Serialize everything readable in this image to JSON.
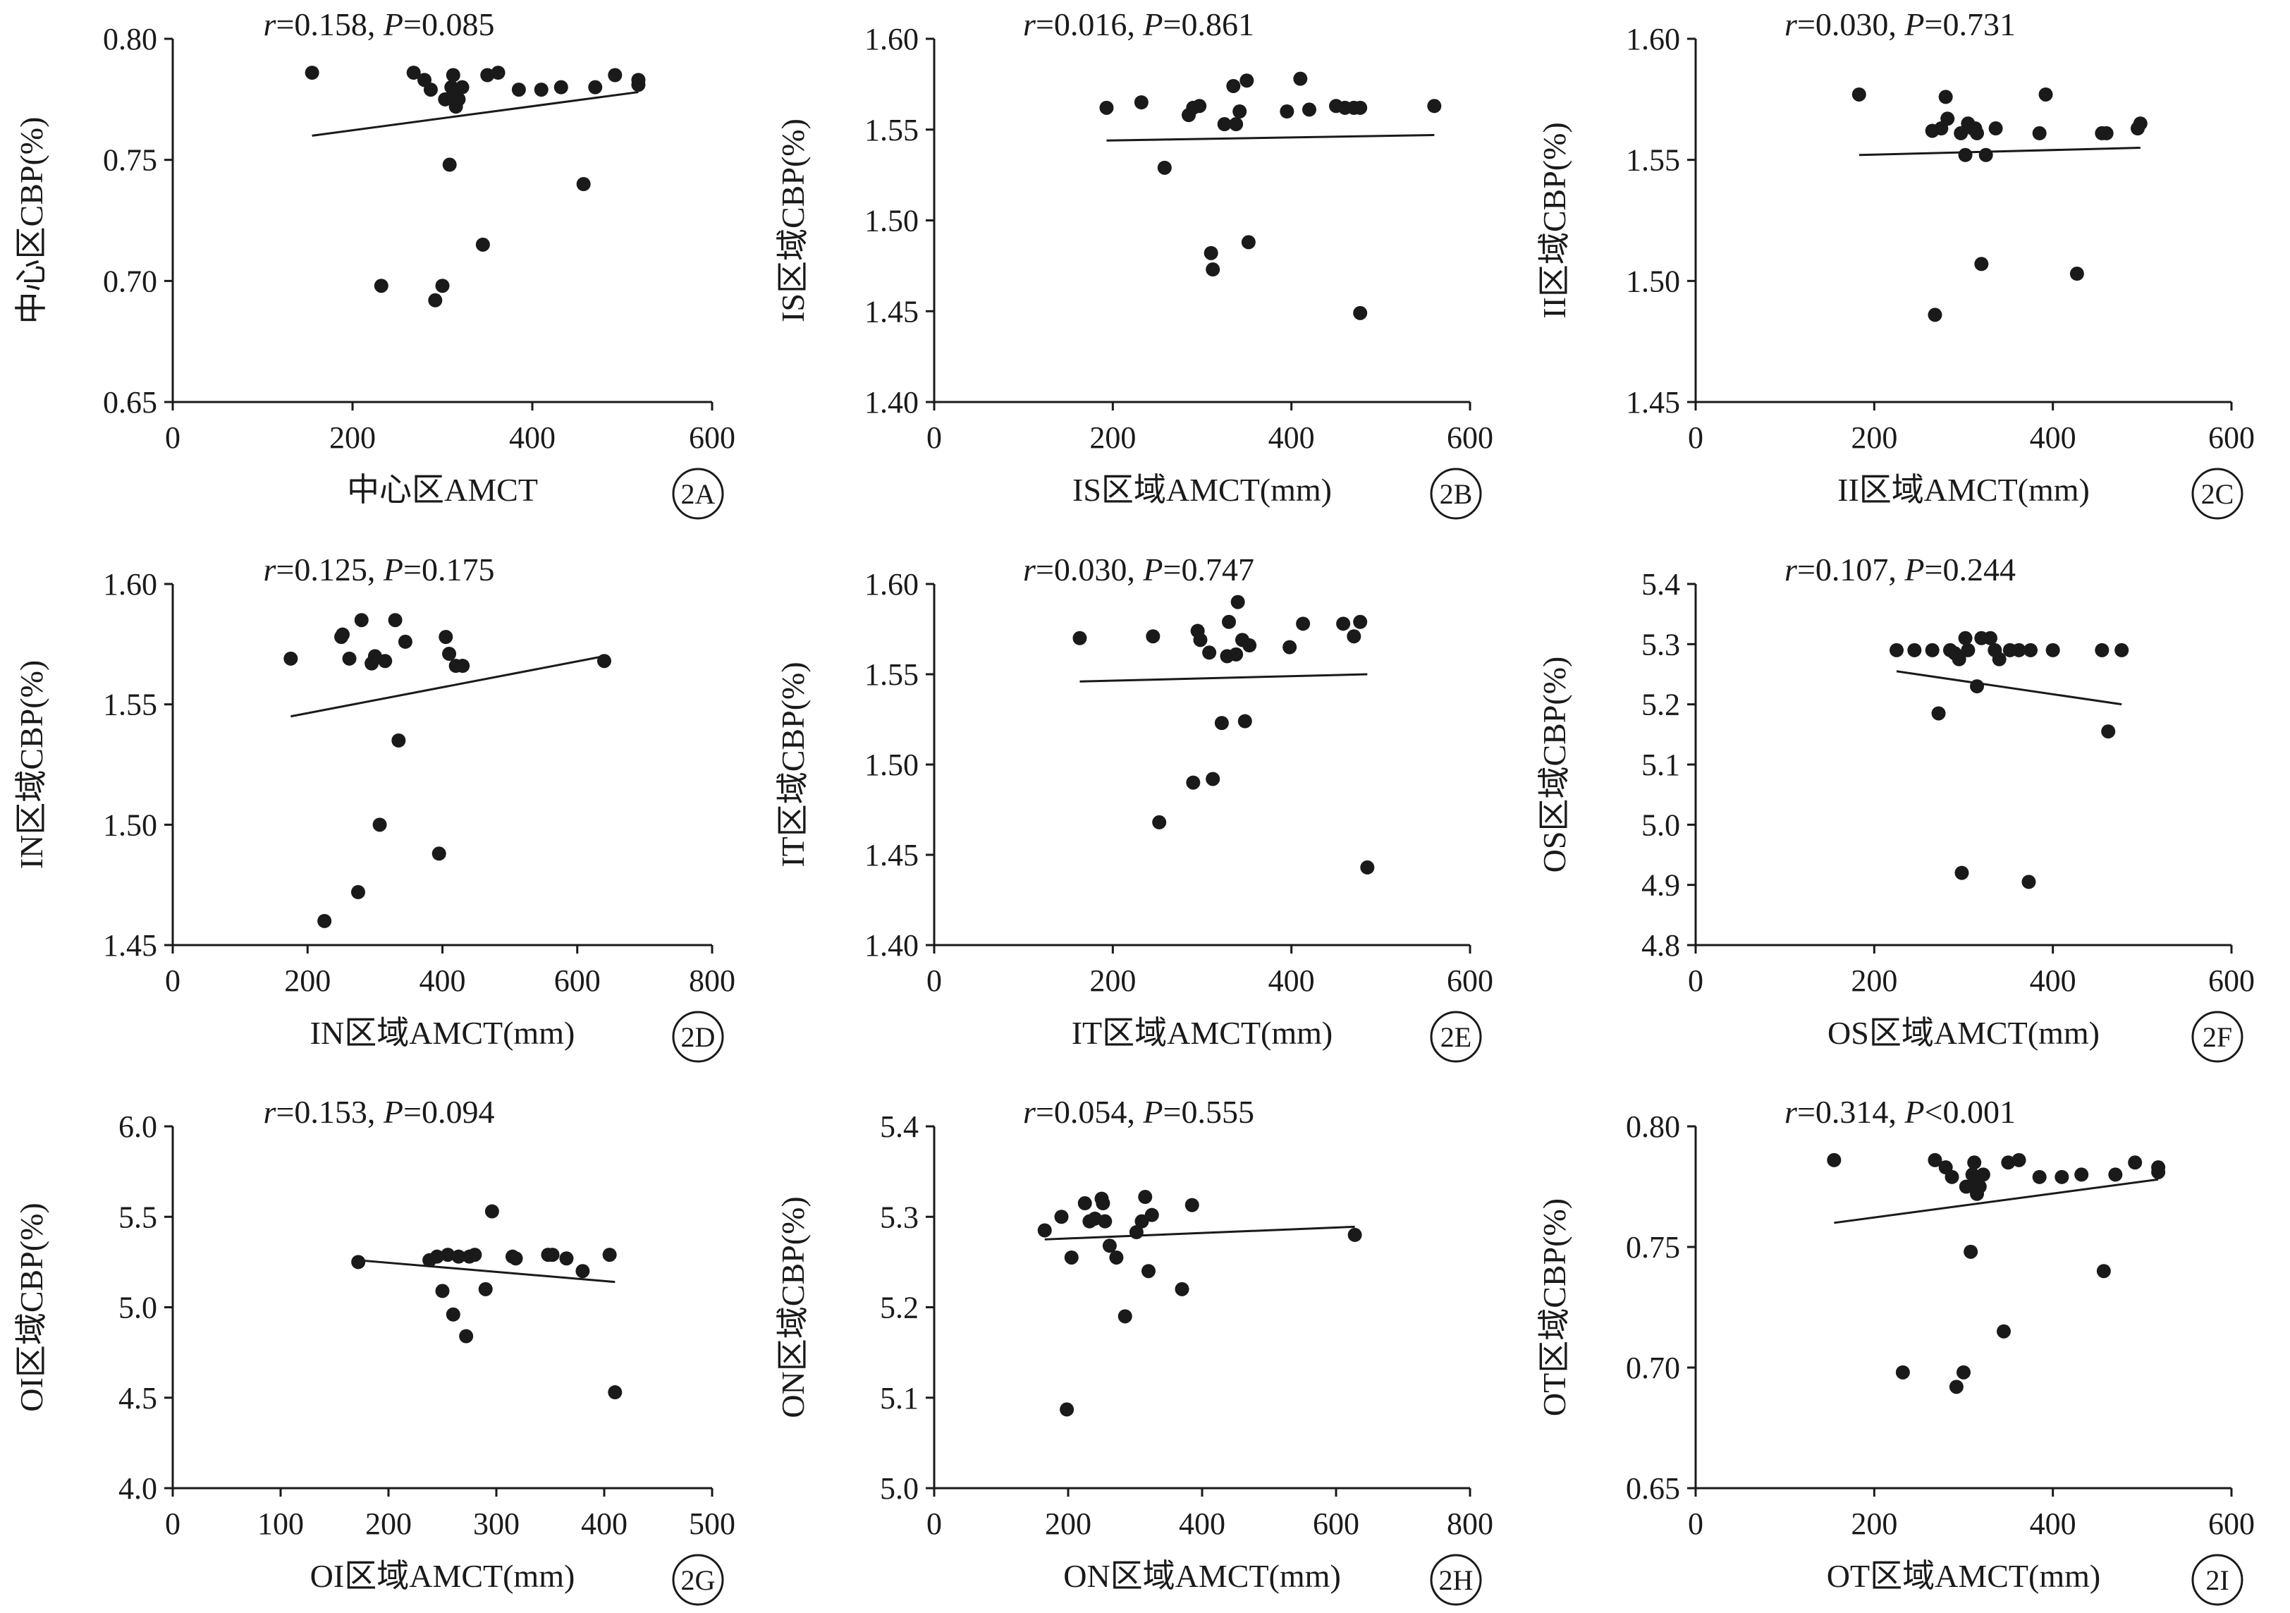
{
  "chart_data": [
    {
      "type": "scatter",
      "panel_label": "2A",
      "stat_text": "r=0.158, P=0.085",
      "xlabel": "中心区AMCT",
      "ylabel": "中心区CBP(%)",
      "xlim": [
        0,
        600
      ],
      "ylim": [
        0.65,
        0.8
      ],
      "xticks": [
        "0",
        "200",
        "400",
        "600"
      ],
      "yticks": [
        "0.65",
        "0.70",
        "0.75",
        "0.80"
      ],
      "points": [
        [
          155,
          0.786
        ],
        [
          232,
          0.698
        ],
        [
          268,
          0.786
        ],
        [
          280,
          0.783
        ],
        [
          287,
          0.779
        ],
        [
          292,
          0.692
        ],
        [
          300,
          0.698
        ],
        [
          303,
          0.775
        ],
        [
          308,
          0.748
        ],
        [
          310,
          0.78
        ],
        [
          312,
          0.785
        ],
        [
          313,
          0.778
        ],
        [
          315,
          0.772
        ],
        [
          318,
          0.775
        ],
        [
          322,
          0.78
        ],
        [
          345,
          0.715
        ],
        [
          350,
          0.785
        ],
        [
          362,
          0.786
        ],
        [
          385,
          0.779
        ],
        [
          410,
          0.779
        ],
        [
          432,
          0.78
        ],
        [
          457,
          0.74
        ],
        [
          470,
          0.78
        ],
        [
          492,
          0.785
        ],
        [
          518,
          0.783
        ],
        [
          518,
          0.781
        ]
      ],
      "fit": [
        [
          155,
          0.76
        ],
        [
          518,
          0.778
        ]
      ]
    },
    {
      "type": "scatter",
      "panel_label": "2B",
      "stat_text": "r=0.016, P=0.861",
      "xlabel": "IS区域AMCT(mm)",
      "ylabel": "IS区域CBP(%)",
      "xlim": [
        0,
        600
      ],
      "ylim": [
        1.4,
        1.6
      ],
      "xticks": [
        "0",
        "200",
        "400",
        "600"
      ],
      "yticks": [
        "1.40",
        "1.45",
        "1.50",
        "1.55",
        "1.60"
      ],
      "points": [
        [
          193,
          1.562
        ],
        [
          232,
          1.565
        ],
        [
          258,
          1.529
        ],
        [
          285,
          1.558
        ],
        [
          290,
          1.562
        ],
        [
          297,
          1.563
        ],
        [
          310,
          1.482
        ],
        [
          312,
          1.473
        ],
        [
          325,
          1.553
        ],
        [
          335,
          1.574
        ],
        [
          338,
          1.553
        ],
        [
          342,
          1.56
        ],
        [
          350,
          1.577
        ],
        [
          352,
          1.488
        ],
        [
          395,
          1.56
        ],
        [
          410,
          1.578
        ],
        [
          420,
          1.561
        ],
        [
          450,
          1.563
        ],
        [
          460,
          1.562
        ],
        [
          470,
          1.562
        ],
        [
          477,
          1.449
        ],
        [
          477,
          1.562
        ],
        [
          560,
          1.563
        ]
      ],
      "fit": [
        [
          193,
          1.544
        ],
        [
          560,
          1.547
        ]
      ]
    },
    {
      "type": "scatter",
      "panel_label": "2C",
      "stat_text": "r=0.030, P=0.731",
      "xlabel": "II区域AMCT(mm)",
      "ylabel": "II区域CBP(%)",
      "xlim": [
        0,
        600
      ],
      "ylim": [
        1.45,
        1.6
      ],
      "xticks": [
        "0",
        "200",
        "400",
        "600"
      ],
      "yticks": [
        "1.45",
        "1.50",
        "1.55",
        "1.60"
      ],
      "points": [
        [
          183,
          1.577
        ],
        [
          265,
          1.562
        ],
        [
          268,
          1.486
        ],
        [
          275,
          1.563
        ],
        [
          280,
          1.576
        ],
        [
          282,
          1.567
        ],
        [
          297,
          1.561
        ],
        [
          302,
          1.552
        ],
        [
          305,
          1.565
        ],
        [
          310,
          1.563
        ],
        [
          313,
          1.563
        ],
        [
          315,
          1.561
        ],
        [
          320,
          1.507
        ],
        [
          325,
          1.552
        ],
        [
          336,
          1.563
        ],
        [
          385,
          1.561
        ],
        [
          392,
          1.577
        ],
        [
          427,
          1.503
        ],
        [
          455,
          1.561
        ],
        [
          460,
          1.561
        ],
        [
          495,
          1.563
        ],
        [
          498,
          1.565
        ]
      ],
      "fit": [
        [
          183,
          1.552
        ],
        [
          498,
          1.555
        ]
      ]
    },
    {
      "type": "scatter",
      "panel_label": "2D",
      "stat_text": "r=0.125, P=0.175",
      "xlabel": "IN区域AMCT(mm)",
      "ylabel": "IN区域CBP(%)",
      "xlim": [
        0,
        800
      ],
      "ylim": [
        1.45,
        1.6
      ],
      "xticks": [
        "0",
        "200",
        "400",
        "600",
        "800"
      ],
      "yticks": [
        "1.45",
        "1.50",
        "1.55",
        "1.60"
      ],
      "points": [
        [
          175,
          1.569
        ],
        [
          225,
          1.46
        ],
        [
          250,
          1.578
        ],
        [
          252,
          1.579
        ],
        [
          262,
          1.569
        ],
        [
          275,
          1.472
        ],
        [
          280,
          1.585
        ],
        [
          295,
          1.567
        ],
        [
          300,
          1.57
        ],
        [
          307,
          1.5
        ],
        [
          315,
          1.568
        ],
        [
          330,
          1.585
        ],
        [
          335,
          1.535
        ],
        [
          345,
          1.576
        ],
        [
          395,
          1.488
        ],
        [
          405,
          1.578
        ],
        [
          410,
          1.571
        ],
        [
          420,
          1.566
        ],
        [
          430,
          1.566
        ],
        [
          640,
          1.568
        ]
      ],
      "fit": [
        [
          175,
          1.545
        ],
        [
          640,
          1.57
        ]
      ]
    },
    {
      "type": "scatter",
      "panel_label": "2E",
      "stat_text": "r=0.030, P=0.747",
      "xlabel": "IT区域AMCT(mm)",
      "ylabel": "IT区域CBP(%)",
      "xlim": [
        0,
        600
      ],
      "ylim": [
        1.4,
        1.6
      ],
      "xticks": [
        "0",
        "200",
        "400",
        "600"
      ],
      "yticks": [
        "1.40",
        "1.45",
        "1.50",
        "1.55",
        "1.60"
      ],
      "points": [
        [
          163,
          1.57
        ],
        [
          245,
          1.571
        ],
        [
          252,
          1.468
        ],
        [
          290,
          1.49
        ],
        [
          295,
          1.574
        ],
        [
          298,
          1.569
        ],
        [
          308,
          1.562
        ],
        [
          312,
          1.492
        ],
        [
          322,
          1.523
        ],
        [
          328,
          1.56
        ],
        [
          330,
          1.579
        ],
        [
          338,
          1.561
        ],
        [
          340,
          1.59
        ],
        [
          345,
          1.569
        ],
        [
          348,
          1.524
        ],
        [
          353,
          1.566
        ],
        [
          398,
          1.565
        ],
        [
          413,
          1.578
        ],
        [
          458,
          1.578
        ],
        [
          470,
          1.571
        ],
        [
          477,
          1.579
        ],
        [
          485,
          1.443
        ]
      ],
      "fit": [
        [
          163,
          1.546
        ],
        [
          485,
          1.55
        ]
      ]
    },
    {
      "type": "scatter",
      "panel_label": "2F",
      "stat_text": "r=0.107, P=0.244",
      "xlabel": "OS区域AMCT(mm)",
      "ylabel": "OS区域CBP(%)",
      "xlim": [
        0,
        600
      ],
      "ylim": [
        4.8,
        5.4
      ],
      "xticks": [
        "0",
        "200",
        "400",
        "600"
      ],
      "yticks": [
        "4.8",
        "4.9",
        "5.0",
        "5.1",
        "5.2",
        "5.3",
        "5.4"
      ],
      "points": [
        [
          225,
          5.29
        ],
        [
          245,
          5.29
        ],
        [
          265,
          5.29
        ],
        [
          272,
          5.185
        ],
        [
          285,
          5.29
        ],
        [
          290,
          5.285
        ],
        [
          295,
          5.275
        ],
        [
          298,
          4.92
        ],
        [
          302,
          5.31
        ],
        [
          305,
          5.29
        ],
        [
          315,
          5.23
        ],
        [
          320,
          5.31
        ],
        [
          330,
          5.31
        ],
        [
          335,
          5.29
        ],
        [
          340,
          5.275
        ],
        [
          352,
          5.29
        ],
        [
          362,
          5.29
        ],
        [
          373,
          4.905
        ],
        [
          375,
          5.29
        ],
        [
          400,
          5.29
        ],
        [
          455,
          5.29
        ],
        [
          462,
          5.155
        ],
        [
          477,
          5.29
        ]
      ],
      "fit": [
        [
          225,
          5.255
        ],
        [
          477,
          5.2
        ]
      ]
    },
    {
      "type": "scatter",
      "panel_label": "2G",
      "stat_text": "r=0.153, P=0.094",
      "xlabel": "OI区域AMCT(mm)",
      "ylabel": "OI区域CBP(%)",
      "xlim": [
        0,
        500
      ],
      "ylim": [
        4.0,
        6.0
      ],
      "xticks": [
        "0",
        "100",
        "200",
        "300",
        "400",
        "500"
      ],
      "yticks": [
        "4.0",
        "4.5",
        "5.0",
        "5.5",
        "6.0"
      ],
      "points": [
        [
          172,
          5.25
        ],
        [
          238,
          5.26
        ],
        [
          245,
          5.28
        ],
        [
          250,
          5.09
        ],
        [
          255,
          5.29
        ],
        [
          260,
          4.96
        ],
        [
          265,
          5.28
        ],
        [
          272,
          4.84
        ],
        [
          275,
          5.28
        ],
        [
          280,
          5.29
        ],
        [
          290,
          5.1
        ],
        [
          296,
          5.53
        ],
        [
          315,
          5.28
        ],
        [
          318,
          5.27
        ],
        [
          348,
          5.29
        ],
        [
          352,
          5.29
        ],
        [
          365,
          5.27
        ],
        [
          380,
          5.2
        ],
        [
          405,
          5.29
        ],
        [
          410,
          4.53
        ]
      ],
      "fit": [
        [
          172,
          5.26
        ],
        [
          410,
          5.14
        ]
      ]
    },
    {
      "type": "scatter",
      "panel_label": "2H",
      "stat_text": "r=0.054, P=0.555",
      "xlabel": "ON区域AMCT(mm)",
      "ylabel": "ON区域CBP(%)",
      "xlim": [
        0,
        800
      ],
      "ylim": [
        5.0,
        5.4
      ],
      "xticks": [
        "0",
        "200",
        "400",
        "600",
        "800"
      ],
      "yticks": [
        "5.0",
        "5.1",
        "5.2",
        "5.3",
        "5.4"
      ],
      "points": [
        [
          165,
          5.285
        ],
        [
          190,
          5.3
        ],
        [
          198,
          5.087
        ],
        [
          205,
          5.255
        ],
        [
          225,
          5.315
        ],
        [
          232,
          5.295
        ],
        [
          240,
          5.298
        ],
        [
          250,
          5.32
        ],
        [
          252,
          5.315
        ],
        [
          255,
          5.295
        ],
        [
          262,
          5.268
        ],
        [
          272,
          5.255
        ],
        [
          285,
          5.19
        ],
        [
          302,
          5.283
        ],
        [
          310,
          5.295
        ],
        [
          315,
          5.322
        ],
        [
          320,
          5.24
        ],
        [
          325,
          5.302
        ],
        [
          370,
          5.22
        ],
        [
          385,
          5.313
        ],
        [
          628,
          5.28
        ]
      ],
      "fit": [
        [
          165,
          5.275
        ],
        [
          628,
          5.289
        ]
      ]
    },
    {
      "type": "scatter",
      "panel_label": "2I",
      "stat_text": "r=0.314, P<0.001",
      "xlabel": "OT区域AMCT(mm)",
      "ylabel": "OT区域CBP(%)",
      "xlim": [
        0,
        600
      ],
      "ylim": [
        0.65,
        0.8
      ],
      "xticks": [
        "0",
        "200",
        "400",
        "600"
      ],
      "yticks": [
        "0.65",
        "0.70",
        "0.75",
        "0.80"
      ],
      "points": [
        [
          155,
          0.786
        ],
        [
          232,
          0.698
        ],
        [
          268,
          0.786
        ],
        [
          280,
          0.783
        ],
        [
          287,
          0.779
        ],
        [
          292,
          0.692
        ],
        [
          300,
          0.698
        ],
        [
          303,
          0.775
        ],
        [
          308,
          0.748
        ],
        [
          310,
          0.78
        ],
        [
          312,
          0.785
        ],
        [
          313,
          0.778
        ],
        [
          315,
          0.772
        ],
        [
          318,
          0.775
        ],
        [
          322,
          0.78
        ],
        [
          345,
          0.715
        ],
        [
          350,
          0.785
        ],
        [
          362,
          0.786
        ],
        [
          385,
          0.779
        ],
        [
          410,
          0.779
        ],
        [
          432,
          0.78
        ],
        [
          457,
          0.74
        ],
        [
          470,
          0.78
        ],
        [
          492,
          0.785
        ],
        [
          518,
          0.783
        ],
        [
          518,
          0.781
        ]
      ],
      "fit": [
        [
          155,
          0.76
        ],
        [
          518,
          0.778
        ]
      ]
    }
  ]
}
